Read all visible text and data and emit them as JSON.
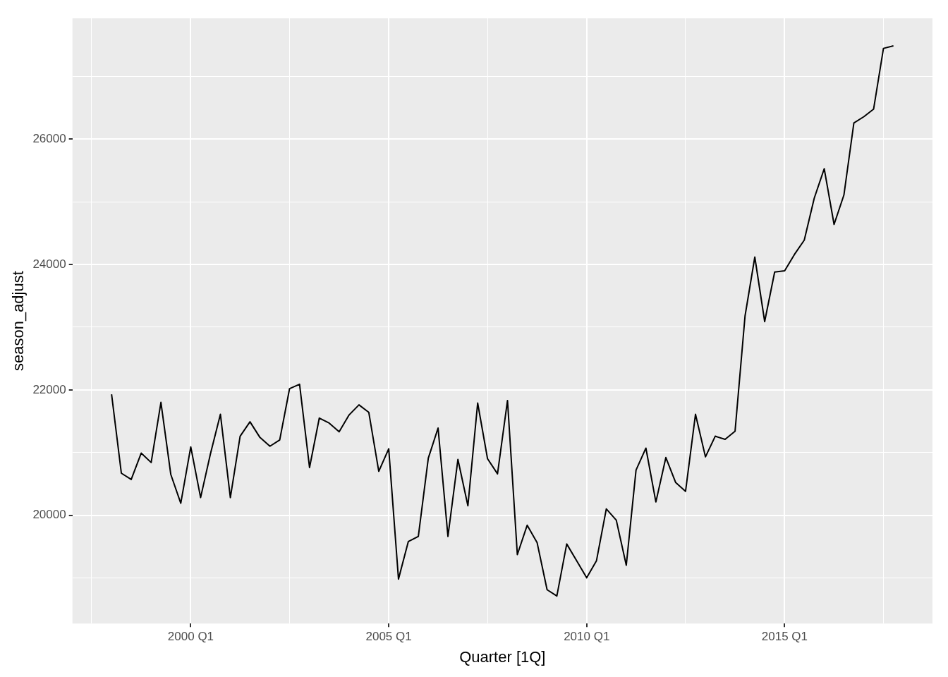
{
  "chart_data": {
    "type": "line",
    "xlabel": "Quarter [1Q]",
    "ylabel": "season_adjust",
    "x": [
      "1998-01",
      "1998-04",
      "1998-07",
      "1998-10",
      "1999-01",
      "1999-04",
      "1999-07",
      "1999-10",
      "2000-01",
      "2000-04",
      "2000-07",
      "2000-10",
      "2001-01",
      "2001-04",
      "2001-07",
      "2001-10",
      "2002-01",
      "2002-04",
      "2002-07",
      "2002-10",
      "2003-01",
      "2003-04",
      "2003-07",
      "2003-10",
      "2004-01",
      "2004-04",
      "2004-07",
      "2004-10",
      "2005-01",
      "2005-04",
      "2005-07",
      "2005-10",
      "2006-01",
      "2006-04",
      "2006-07",
      "2006-10",
      "2007-01",
      "2007-04",
      "2007-07",
      "2007-10",
      "2008-01",
      "2008-04",
      "2008-07",
      "2008-10",
      "2009-01",
      "2009-04",
      "2009-07",
      "2009-10",
      "2010-01",
      "2010-04",
      "2010-07",
      "2010-10",
      "2011-01",
      "2011-04",
      "2011-07",
      "2011-10",
      "2012-01",
      "2012-04",
      "2012-07",
      "2012-10",
      "2013-01",
      "2013-04",
      "2013-07",
      "2013-10",
      "2014-01",
      "2014-04",
      "2014-07",
      "2014-10",
      "2015-01",
      "2015-04",
      "2015-07",
      "2015-10",
      "2016-01",
      "2016-04",
      "2016-07",
      "2016-10",
      "2017-01",
      "2017-04",
      "2017-07",
      "2017-10"
    ],
    "series": [
      {
        "color": "#000000",
        "values": [
          21930,
          20670,
          20570,
          20990,
          20840,
          21800,
          20650,
          20190,
          21090,
          20280,
          20980,
          21610,
          20280,
          21260,
          21490,
          21240,
          21100,
          21200,
          22020,
          22090,
          20760,
          21550,
          21470,
          21330,
          21600,
          21760,
          21640,
          20700,
          21060,
          18980,
          19580,
          19660,
          20910,
          21390,
          19660,
          20890,
          20150,
          21790,
          20900,
          20660,
          21830,
          19370,
          19840,
          19560,
          18810,
          18710,
          19540,
          19270,
          19000,
          19270,
          20100,
          19920,
          19200,
          20720,
          21070,
          20210,
          20920,
          20520,
          20380,
          21610,
          20930,
          21260,
          21210,
          21340,
          23180,
          24120,
          23090,
          23880,
          23900,
          24160,
          24390,
          25060,
          25530,
          24640,
          25110,
          26260,
          26360,
          26480,
          27450,
          27490
        ]
      }
    ],
    "xlim": [
      "1997-01-05",
      "2018-09-26"
    ],
    "ylim": [
      18270,
      27930
    ],
    "xticks": [
      {
        "value": "1997-07",
        "label": null
      },
      {
        "value": "2000-01",
        "label": "2000 Q1"
      },
      {
        "value": "2002-07",
        "label": null
      },
      {
        "value": "2005-01",
        "label": "2005 Q1"
      },
      {
        "value": "2007-07",
        "label": null
      },
      {
        "value": "2010-01",
        "label": "2010 Q1"
      },
      {
        "value": "2012-07",
        "label": null
      },
      {
        "value": "2015-01",
        "label": "2015 Q1"
      },
      {
        "value": "2017-07",
        "label": null
      }
    ],
    "yticks": [
      {
        "value": 19000,
        "label": null
      },
      20000,
      {
        "value": 21000,
        "label": null
      },
      22000,
      {
        "value": 23000,
        "label": null
      },
      24000,
      {
        "value": 25000,
        "label": null
      },
      26000,
      {
        "value": 27000,
        "label": null
      }
    ],
    "grid": true,
    "legend": false,
    "marker": "none",
    "line_style": "solid"
  }
}
